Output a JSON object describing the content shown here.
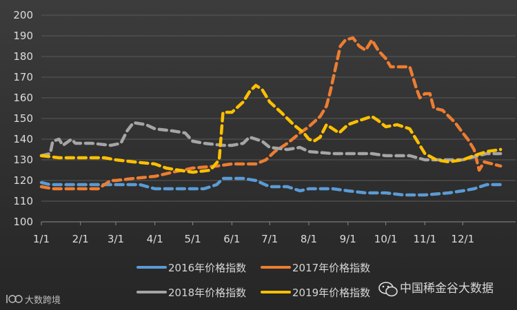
{
  "chart_data": {
    "type": "line",
    "x_ticks": [
      "1/1",
      "2/1",
      "3/1",
      "4/1",
      "5/1",
      "6/1",
      "7/1",
      "8/1",
      "9/1",
      "10/1",
      "11/1",
      "12/1"
    ],
    "ylim": [
      100,
      200
    ],
    "y_ticks": [
      100,
      110,
      120,
      130,
      140,
      150,
      160,
      170,
      180,
      190,
      200
    ],
    "grid": true,
    "legend_position": "bottom",
    "series": [
      {
        "name": "2016年价格指数",
        "color": "#5b9bd5",
        "points": [
          [
            "1/1",
            119
          ],
          [
            "1/8",
            118
          ],
          [
            "1/22",
            118
          ],
          [
            "2/1",
            118
          ],
          [
            "2/20",
            118
          ],
          [
            "3/10",
            118
          ],
          [
            "3/20",
            118
          ],
          [
            "4/1",
            116
          ],
          [
            "4/20",
            116
          ],
          [
            "5/10",
            116
          ],
          [
            "5/20",
            118
          ],
          [
            "5/25",
            121
          ],
          [
            "6/1",
            121
          ],
          [
            "6/10",
            121
          ],
          [
            "6/20",
            120
          ],
          [
            "7/1",
            117
          ],
          [
            "7/15",
            117
          ],
          [
            "7/25",
            115
          ],
          [
            "8/1",
            116
          ],
          [
            "8/20",
            116
          ],
          [
            "9/1",
            115
          ],
          [
            "9/15",
            114
          ],
          [
            "10/1",
            114
          ],
          [
            "10/15",
            113
          ],
          [
            "11/1",
            113
          ],
          [
            "11/20",
            114
          ],
          [
            "12/1",
            115
          ],
          [
            "12/10",
            116
          ],
          [
            "12/20",
            118
          ],
          [
            "12/31",
            118
          ]
        ]
      },
      {
        "name": "2017年价格指数",
        "color": "#ed7d31",
        "points": [
          [
            "1/1",
            117
          ],
          [
            "1/10",
            116
          ],
          [
            "1/20",
            116
          ],
          [
            "2/5",
            116
          ],
          [
            "2/15",
            116
          ],
          [
            "2/25",
            120
          ],
          [
            "3/1",
            120
          ],
          [
            "3/15",
            121
          ],
          [
            "4/1",
            122
          ],
          [
            "4/15",
            124
          ],
          [
            "5/1",
            126
          ],
          [
            "5/20",
            127
          ],
          [
            "6/1",
            128
          ],
          [
            "6/20",
            128
          ],
          [
            "6/28",
            130
          ],
          [
            "7/5",
            134
          ],
          [
            "7/15",
            138
          ],
          [
            "7/25",
            143
          ],
          [
            "8/1",
            146
          ],
          [
            "8/10",
            151
          ],
          [
            "8/15",
            156
          ],
          [
            "8/18",
            163
          ],
          [
            "8/26",
            185
          ],
          [
            "8/30",
            188
          ],
          [
            "9/5",
            189
          ],
          [
            "9/10",
            185
          ],
          [
            "9/15",
            183
          ],
          [
            "9/20",
            188
          ],
          [
            "9/25",
            183
          ],
          [
            "10/1",
            179
          ],
          [
            "10/5",
            175
          ],
          [
            "10/10",
            175
          ],
          [
            "10/20",
            175
          ],
          [
            "10/25",
            165
          ],
          [
            "10/28",
            160
          ],
          [
            "11/1",
            162
          ],
          [
            "11/5",
            162
          ],
          [
            "11/8",
            155
          ],
          [
            "11/15",
            154
          ],
          [
            "11/25",
            148
          ],
          [
            "12/1",
            143
          ],
          [
            "12/5",
            140
          ],
          [
            "12/10",
            135
          ],
          [
            "12/14",
            125
          ],
          [
            "12/18",
            129
          ],
          [
            "12/31",
            127
          ]
        ]
      },
      {
        "name": "2018年价格指数",
        "color": "#a5a5a5",
        "points": [
          [
            "1/1",
            132
          ],
          [
            "1/8",
            133
          ],
          [
            "1/10",
            139
          ],
          [
            "1/15",
            140
          ],
          [
            "1/18",
            137
          ],
          [
            "1/25",
            140
          ],
          [
            "1/28",
            138
          ],
          [
            "2/1",
            138
          ],
          [
            "2/10",
            138
          ],
          [
            "2/25",
            137
          ],
          [
            "3/5",
            138
          ],
          [
            "3/10",
            144
          ],
          [
            "3/15",
            148
          ],
          [
            "3/25",
            147
          ],
          [
            "4/1",
            145
          ],
          [
            "4/15",
            144
          ],
          [
            "4/25",
            143
          ],
          [
            "5/1",
            139
          ],
          [
            "5/10",
            138
          ],
          [
            "5/25",
            137
          ],
          [
            "6/1",
            137
          ],
          [
            "6/10",
            138
          ],
          [
            "6/15",
            141
          ],
          [
            "6/25",
            139
          ],
          [
            "7/1",
            136
          ],
          [
            "7/15",
            135
          ],
          [
            "7/25",
            136
          ],
          [
            "8/1",
            134
          ],
          [
            "8/20",
            133
          ],
          [
            "9/1",
            133
          ],
          [
            "9/20",
            133
          ],
          [
            "10/1",
            132
          ],
          [
            "10/20",
            132
          ],
          [
            "11/1",
            130
          ],
          [
            "11/15",
            130
          ],
          [
            "12/1",
            130
          ],
          [
            "12/20",
            133
          ],
          [
            "12/31",
            133
          ]
        ]
      },
      {
        "name": "2019年价格指数",
        "color": "#ffc000",
        "points": [
          [
            "1/1",
            132
          ],
          [
            "1/15",
            131
          ],
          [
            "2/1",
            131
          ],
          [
            "2/20",
            131
          ],
          [
            "3/1",
            130
          ],
          [
            "3/15",
            129
          ],
          [
            "4/1",
            128
          ],
          [
            "4/10",
            126
          ],
          [
            "4/20",
            125
          ],
          [
            "5/1",
            124
          ],
          [
            "5/15",
            125
          ],
          [
            "5/22",
            130
          ],
          [
            "5/25",
            153
          ],
          [
            "6/1",
            153
          ],
          [
            "6/10",
            158
          ],
          [
            "6/15",
            163
          ],
          [
            "6/20",
            166
          ],
          [
            "6/25",
            164
          ],
          [
            "7/1",
            158
          ],
          [
            "7/10",
            153
          ],
          [
            "7/20",
            147
          ],
          [
            "7/28",
            143
          ],
          [
            "8/1",
            140
          ],
          [
            "8/5",
            139
          ],
          [
            "8/10",
            141
          ],
          [
            "8/15",
            147
          ],
          [
            "8/20",
            145
          ],
          [
            "8/25",
            143
          ],
          [
            "9/1",
            147
          ],
          [
            "9/10",
            149
          ],
          [
            "9/20",
            151
          ],
          [
            "9/25",
            149
          ],
          [
            "10/1",
            146
          ],
          [
            "10/10",
            147
          ],
          [
            "10/20",
            145
          ],
          [
            "10/25",
            140
          ],
          [
            "11/1",
            133
          ],
          [
            "11/10",
            130
          ],
          [
            "11/20",
            129
          ],
          [
            "12/1",
            130
          ],
          [
            "12/10",
            132
          ],
          [
            "12/20",
            134
          ],
          [
            "12/31",
            135
          ]
        ]
      }
    ]
  },
  "watermark": {
    "channel": "中国稀金谷大数据",
    "logo_text": "大数跨境"
  }
}
